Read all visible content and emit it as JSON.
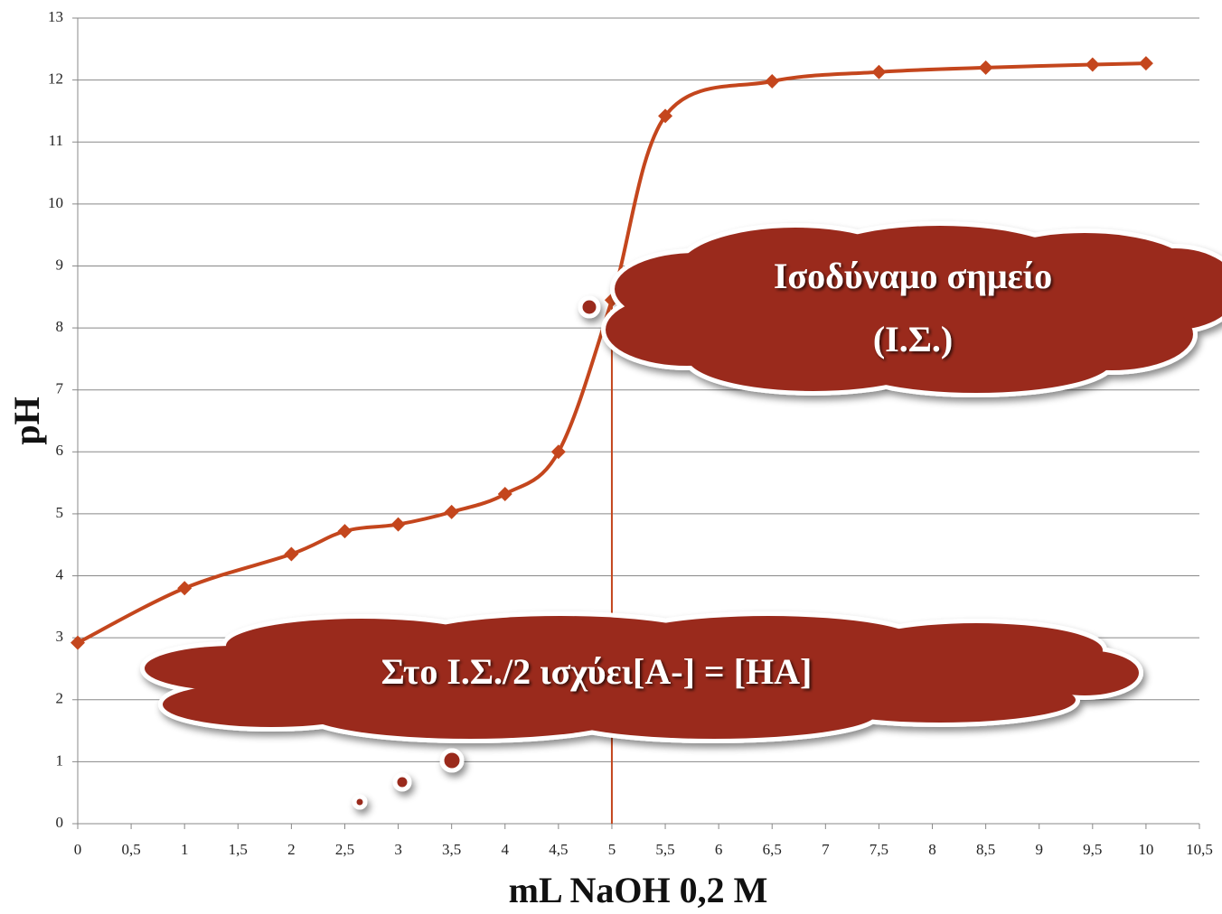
{
  "chart_data": {
    "type": "line",
    "x_label": "mL NaOH 0,2 M",
    "y_label": "pH",
    "x": [
      0,
      1,
      2,
      2.5,
      3,
      3.5,
      4,
      4.5,
      5,
      5.5,
      6.5,
      7.5,
      8.5,
      9.5,
      10
    ],
    "series": [
      {
        "color": "#c4461d",
        "values": [
          2.92,
          3.8,
          4.35,
          4.72,
          4.83,
          5.03,
          5.32,
          6.0,
          8.45,
          11.42,
          11.98,
          12.13,
          12.2,
          12.25,
          12.27
        ]
      }
    ],
    "xlim": [
      0,
      10.5
    ],
    "xticks": [
      0,
      {
        "value": 0.5,
        "label": "0,5"
      },
      1,
      {
        "value": 1.5,
        "label": "1,5"
      },
      2,
      {
        "value": 2.5,
        "label": "2,5"
      },
      3,
      {
        "value": 3.5,
        "label": "3,5"
      },
      4,
      {
        "value": 4.5,
        "label": "4,5"
      },
      5,
      {
        "value": 5.5,
        "label": "5,5"
      },
      6,
      {
        "value": 6.5,
        "label": "6,5"
      },
      7,
      {
        "value": 7.5,
        "label": "7,5"
      },
      8,
      {
        "value": 8.5,
        "label": "8,5"
      },
      9,
      {
        "value": 9.5,
        "label": "9,5"
      },
      10,
      {
        "value": 10.5,
        "label": "10,5"
      }
    ],
    "ylim": [
      0,
      13
    ],
    "yticks": [
      0,
      1,
      2,
      3,
      4,
      5,
      6,
      7,
      8,
      9,
      10,
      11,
      12,
      13
    ],
    "grid": true,
    "vline": 5,
    "annotations": [
      {
        "lines": [
          "Ισοδύναμο σημείο",
          "(Ι.Σ.)"
        ]
      },
      {
        "lines": [
          "Στο Ι.Σ./2 ισχύει[Α-] = [ΗΑ]"
        ]
      }
    ]
  }
}
